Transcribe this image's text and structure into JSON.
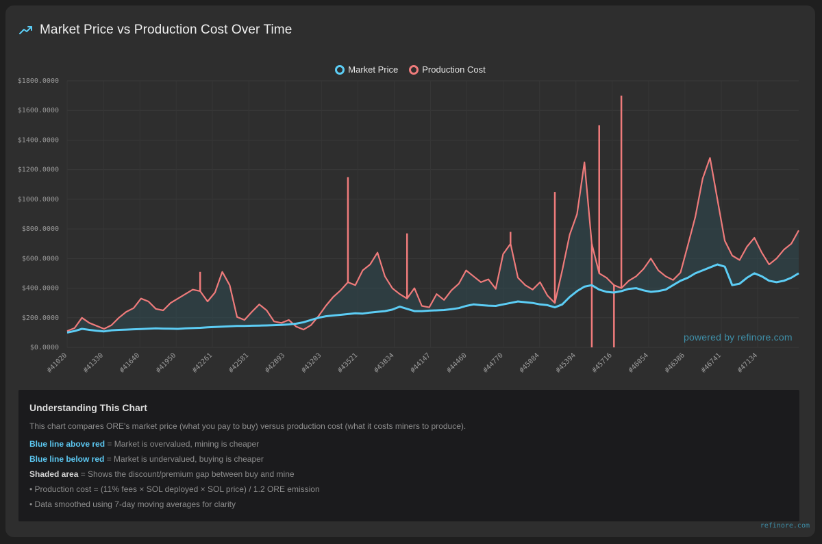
{
  "header": {
    "title": "Market Price vs Production Cost Over Time",
    "icon": "trending-up-icon"
  },
  "watermark": "powered by refinore.com",
  "footer": "refinore.com",
  "colors": {
    "market": "#5ccdf5",
    "production": "#ef7b7b",
    "shade": "#2f4a52"
  },
  "chart_data": {
    "type": "line",
    "title": "Market Price vs Production Cost Over Time",
    "legend": [
      "Market Price",
      "Production Cost"
    ],
    "legend_position": "top-center",
    "ylim": [
      0,
      1800
    ],
    "y_ticks": [
      "$1800.0000",
      "$1600.0000",
      "$1400.0000",
      "$1200.0000",
      "$1000.0000",
      "$800.0000",
      "$600.0000",
      "$400.0000",
      "$200.0000",
      "$0.0000"
    ],
    "y_tick_values": [
      1800,
      1600,
      1400,
      1200,
      1000,
      800,
      600,
      400,
      200,
      0
    ],
    "x_ticks": [
      "#41020",
      "#41330",
      "#41640",
      "#41950",
      "#42261",
      "#42581",
      "#42893",
      "#43203",
      "#43521",
      "#43834",
      "#44147",
      "#44460",
      "#44770",
      "#45084",
      "#45394",
      "#45716",
      "#46054",
      "#46386",
      "#46741",
      "#47134"
    ],
    "series": [
      {
        "name": "Market Price",
        "values": [
          100,
          110,
          125,
          118,
          112,
          108,
          115,
          118,
          120,
          122,
          124,
          126,
          128,
          127,
          126,
          125,
          128,
          130,
          132,
          135,
          138,
          140,
          142,
          145,
          145,
          146,
          147,
          148,
          150,
          152,
          155,
          160,
          170,
          185,
          200,
          210,
          215,
          220,
          225,
          230,
          228,
          235,
          240,
          245,
          255,
          275,
          260,
          245,
          245,
          248,
          250,
          252,
          258,
          265,
          280,
          290,
          285,
          282,
          280,
          290,
          300,
          310,
          305,
          300,
          290,
          285,
          270,
          290,
          340,
          380,
          410,
          420,
          390,
          375,
          370,
          380,
          395,
          400,
          385,
          375,
          380,
          390,
          420,
          450,
          470,
          500,
          520,
          540,
          560,
          545,
          420,
          430,
          470,
          500,
          480,
          450,
          440,
          450,
          470,
          500
        ]
      },
      {
        "name": "Production Cost",
        "values": [
          110,
          130,
          200,
          165,
          145,
          125,
          150,
          200,
          240,
          265,
          330,
          310,
          260,
          250,
          300,
          330,
          360,
          390,
          380,
          310,
          370,
          510,
          420,
          205,
          185,
          240,
          290,
          250,
          175,
          165,
          185,
          140,
          120,
          150,
          210,
          280,
          340,
          385,
          440,
          420,
          520,
          560,
          640,
          480,
          400,
          360,
          330,
          400,
          280,
          270,
          360,
          320,
          385,
          430,
          520,
          480,
          440,
          460,
          395,
          630,
          700,
          470,
          420,
          390,
          440,
          350,
          300,
          520,
          760,
          900,
          1250,
          700,
          500,
          470,
          420,
          400,
          450,
          480,
          530,
          600,
          520,
          480,
          455,
          505,
          690,
          880,
          1140,
          1280,
          1000,
          720,
          620,
          590,
          680,
          740,
          640,
          560,
          600,
          660,
          700,
          790
        ]
      }
    ],
    "spikes": [
      {
        "index": 18,
        "value": 510,
        "direction": "up"
      },
      {
        "index": 38,
        "value": 1150,
        "direction": "up"
      },
      {
        "index": 46,
        "value": 770,
        "direction": "up"
      },
      {
        "index": 60,
        "value": 780,
        "direction": "up"
      },
      {
        "index": 66,
        "value": 1050,
        "direction": "up"
      },
      {
        "index": 72,
        "value": 1500,
        "direction": "up"
      },
      {
        "index": 75,
        "value": 1700,
        "direction": "up"
      },
      {
        "index": 71,
        "value": 0,
        "direction": "down"
      },
      {
        "index": 74,
        "value": 0,
        "direction": "down"
      }
    ]
  },
  "info": {
    "heading": "Understanding This Chart",
    "intro": "This chart compares ORE's market price (what you pay to buy) versus production cost (what it costs miners to produce).",
    "line1_bold": "Blue line above red",
    "line1_text": " = Market is overvalued, mining is cheaper",
    "line2_bold": "Blue line below red",
    "line2_text": " = Market is undervalued, buying is cheaper",
    "line3_bold": "Shaded area",
    "line3_text": " = Shows the discount/premium gap between buy and mine",
    "bullet1": "• Production cost = (11% fees × SOL deployed × SOL price) / 1.2 ORE emission",
    "bullet2": "• Data smoothed using 7-day moving averages for clarity"
  }
}
